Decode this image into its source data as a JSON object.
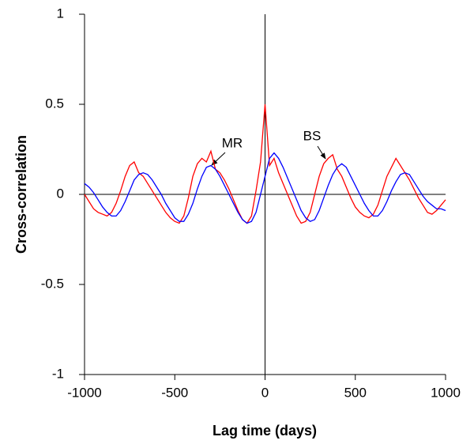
{
  "chart_data": {
    "type": "line",
    "xlabel": "Lag time (days)",
    "ylabel": "Cross-correlation",
    "annotations": [
      "MR",
      "BS"
    ],
    "x": [
      -1000,
      -975,
      -950,
      -925,
      -900,
      -875,
      -850,
      -825,
      -800,
      -775,
      -750,
      -725,
      -700,
      -675,
      -650,
      -625,
      -600,
      -575,
      -550,
      -525,
      -500,
      -475,
      -450,
      -425,
      -400,
      -375,
      -350,
      -325,
      -300,
      -275,
      -250,
      -225,
      -200,
      -175,
      -150,
      -125,
      -100,
      -75,
      -50,
      -25,
      0,
      25,
      50,
      75,
      100,
      125,
      150,
      175,
      200,
      225,
      250,
      275,
      300,
      325,
      350,
      375,
      400,
      425,
      450,
      475,
      500,
      525,
      550,
      575,
      600,
      625,
      650,
      675,
      700,
      725,
      750,
      775,
      800,
      825,
      850,
      875,
      900,
      925,
      950,
      975,
      1000
    ],
    "series": [
      {
        "color": "#ff0000",
        "values": [
          0.0,
          -0.04,
          -0.08,
          -0.1,
          -0.11,
          -0.12,
          -0.1,
          -0.05,
          0.02,
          0.1,
          0.16,
          0.18,
          0.12,
          0.1,
          0.06,
          0.02,
          -0.02,
          -0.06,
          -0.1,
          -0.13,
          -0.15,
          -0.16,
          -0.12,
          -0.02,
          0.1,
          0.17,
          0.2,
          0.18,
          0.24,
          0.14,
          0.12,
          0.08,
          0.03,
          -0.03,
          -0.09,
          -0.14,
          -0.16,
          -0.12,
          0.02,
          0.18,
          0.5,
          0.16,
          0.2,
          0.12,
          0.06,
          0.0,
          -0.06,
          -0.12,
          -0.16,
          -0.15,
          -0.1,
          0.0,
          0.1,
          0.17,
          0.2,
          0.22,
          0.14,
          0.1,
          0.04,
          -0.02,
          -0.07,
          -0.1,
          -0.12,
          -0.13,
          -0.11,
          -0.06,
          0.02,
          0.1,
          0.15,
          0.2,
          0.16,
          0.12,
          0.08,
          0.03,
          -0.02,
          -0.06,
          -0.1,
          -0.11,
          -0.09,
          -0.06,
          -0.03
        ]
      },
      {
        "color": "#0000ff",
        "values": [
          0.06,
          0.04,
          0.01,
          -0.03,
          -0.07,
          -0.1,
          -0.12,
          -0.12,
          -0.09,
          -0.04,
          0.02,
          0.08,
          0.11,
          0.12,
          0.11,
          0.08,
          0.04,
          0.0,
          -0.05,
          -0.09,
          -0.13,
          -0.15,
          -0.15,
          -0.11,
          -0.05,
          0.03,
          0.1,
          0.15,
          0.16,
          0.14,
          0.1,
          0.05,
          0.0,
          -0.05,
          -0.1,
          -0.14,
          -0.16,
          -0.15,
          -0.1,
          0.0,
          0.1,
          0.2,
          0.23,
          0.2,
          0.15,
          0.09,
          0.03,
          -0.03,
          -0.09,
          -0.13,
          -0.15,
          -0.14,
          -0.09,
          -0.02,
          0.05,
          0.11,
          0.15,
          0.17,
          0.15,
          0.1,
          0.05,
          0.0,
          -0.05,
          -0.09,
          -0.12,
          -0.12,
          -0.09,
          -0.04,
          0.02,
          0.07,
          0.11,
          0.12,
          0.11,
          0.07,
          0.03,
          -0.01,
          -0.04,
          -0.06,
          -0.08,
          -0.08,
          -0.09
        ]
      }
    ],
    "xlim": [
      -1000,
      1000
    ],
    "xticks": [
      -1000,
      -500,
      0,
      500,
      1000
    ],
    "ylim": [
      -1,
      1
    ],
    "yticks": [
      -1,
      -0.5,
      0,
      0.5,
      1
    ]
  }
}
